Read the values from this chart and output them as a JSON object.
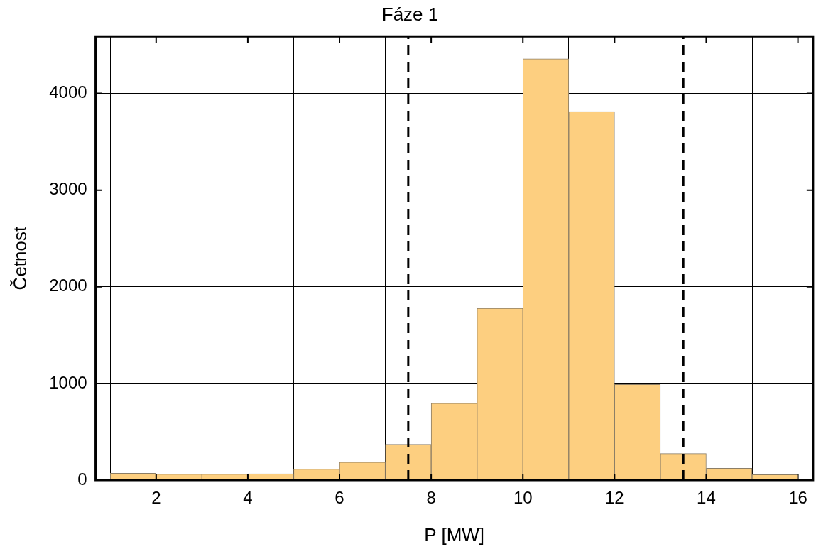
{
  "chart_data": {
    "type": "histogram",
    "title": "Fáze 1",
    "xlabel": "P [MW]",
    "ylabel": "Četnost",
    "bins": [
      1,
      2,
      3,
      4,
      5,
      6,
      7,
      8,
      9,
      10,
      11,
      12,
      13,
      14,
      15,
      16
    ],
    "values": [
      71,
      62,
      62,
      66,
      114,
      185,
      370,
      795,
      1777,
      4357,
      3812,
      989,
      275,
      123,
      57
    ],
    "color": "#fdcf80",
    "ref_lines": [
      {
        "axis": "x",
        "value": 7.5,
        "color": "#000000",
        "line_style": "dashed"
      },
      {
        "axis": "x",
        "value": 13.5,
        "color": "#000000",
        "line_style": "dashed"
      }
    ],
    "xlim": [
      0.68,
      16.33
    ],
    "xticks": [
      2,
      4,
      6,
      8,
      10,
      12,
      14,
      16
    ],
    "ylim": [
      0,
      4590
    ],
    "yticks": [
      0,
      1000,
      2000,
      3000,
      4000
    ],
    "grid": true
  }
}
